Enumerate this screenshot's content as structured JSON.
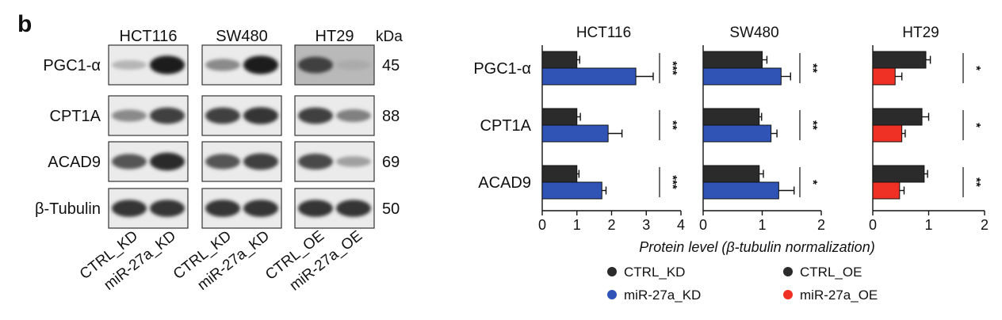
{
  "panel_label": "b",
  "blot": {
    "kda_label": "kDa",
    "cell_lines": [
      "HCT116",
      "SW480",
      "HT29"
    ],
    "proteins": [
      "PGC1-α",
      "CPT1A",
      "ACAD9",
      "β-Tubulin"
    ],
    "kda": [
      "45",
      "88",
      "69",
      "50"
    ],
    "lane_labels": [
      [
        "CTRL_KD",
        "miR-27a_KD"
      ],
      [
        "CTRL_KD",
        "miR-27a_KD"
      ],
      [
        "CTRL_OE",
        "miR-27a_OE"
      ]
    ],
    "band_intensity": [
      [
        [
          0.25,
          0.95
        ],
        [
          0.45,
          0.95
        ],
        [
          0.8,
          0.3
        ]
      ],
      [
        [
          0.45,
          0.8
        ],
        [
          0.8,
          0.85
        ],
        [
          0.8,
          0.5
        ]
      ],
      [
        [
          0.7,
          0.9
        ],
        [
          0.7,
          0.8
        ],
        [
          0.75,
          0.35
        ]
      ],
      [
        [
          0.85,
          0.85
        ],
        [
          0.85,
          0.85
        ],
        [
          0.85,
          0.85
        ]
      ]
    ]
  },
  "chart_data": [
    {
      "type": "bar",
      "orientation": "horizontal",
      "title": "HCT116",
      "categories": [
        "PGC1-α",
        "CPT1A",
        "ACAD9"
      ],
      "series": [
        {
          "name": "CTRL_KD",
          "color": "#2b2b2b",
          "values": [
            1.0,
            1.0,
            1.0
          ],
          "errors": [
            0.08,
            0.1,
            0.06
          ]
        },
        {
          "name": "miR-27a_KD",
          "color": "#2f54b5",
          "values": [
            2.7,
            1.9,
            1.72
          ],
          "errors": [
            0.5,
            0.4,
            0.12
          ]
        }
      ],
      "xlim": [
        0,
        4
      ],
      "xticks": [
        0,
        1,
        2,
        3,
        4
      ],
      "significance": [
        "***",
        "**",
        "***"
      ]
    },
    {
      "type": "bar",
      "orientation": "horizontal",
      "title": "SW480",
      "categories": [
        "PGC1-α",
        "CPT1A",
        "ACAD9"
      ],
      "series": [
        {
          "name": "CTRL_KD",
          "color": "#2b2b2b",
          "values": [
            1.0,
            0.95,
            0.95
          ],
          "errors": [
            0.08,
            0.04,
            0.07
          ]
        },
        {
          "name": "miR-27a_KD",
          "color": "#2f54b5",
          "values": [
            1.32,
            1.15,
            1.28
          ],
          "errors": [
            0.16,
            0.1,
            0.26
          ]
        }
      ],
      "xlim": [
        0,
        2
      ],
      "xticks": [
        0,
        1,
        2
      ],
      "significance": [
        "**",
        "**",
        "*"
      ]
    },
    {
      "type": "bar",
      "orientation": "horizontal",
      "title": "HT29",
      "categories": [
        "PGC1-α",
        "CPT1A",
        "ACAD9"
      ],
      "series": [
        {
          "name": "CTRL_OE",
          "color": "#2b2b2b",
          "values": [
            0.95,
            0.88,
            0.92
          ],
          "errors": [
            0.08,
            0.12,
            0.06
          ]
        },
        {
          "name": "miR-27a_OE",
          "color": "#ee3124",
          "values": [
            0.4,
            0.52,
            0.48
          ],
          "errors": [
            0.12,
            0.06,
            0.08
          ]
        }
      ],
      "xlim": [
        0,
        2
      ],
      "xticks": [
        0,
        1,
        2
      ],
      "significance": [
        "*",
        "*",
        "**"
      ]
    }
  ],
  "xlabel": "Protein level (β-tubulin normalization)",
  "legend": [
    {
      "label": "CTRL_KD",
      "color": "#2b2b2b"
    },
    {
      "label": "miR-27a_KD",
      "color": "#2f54b5"
    },
    {
      "label": "CTRL_OE",
      "color": "#2b2b2b"
    },
    {
      "label": "miR-27a_OE",
      "color": "#ee3124"
    }
  ]
}
